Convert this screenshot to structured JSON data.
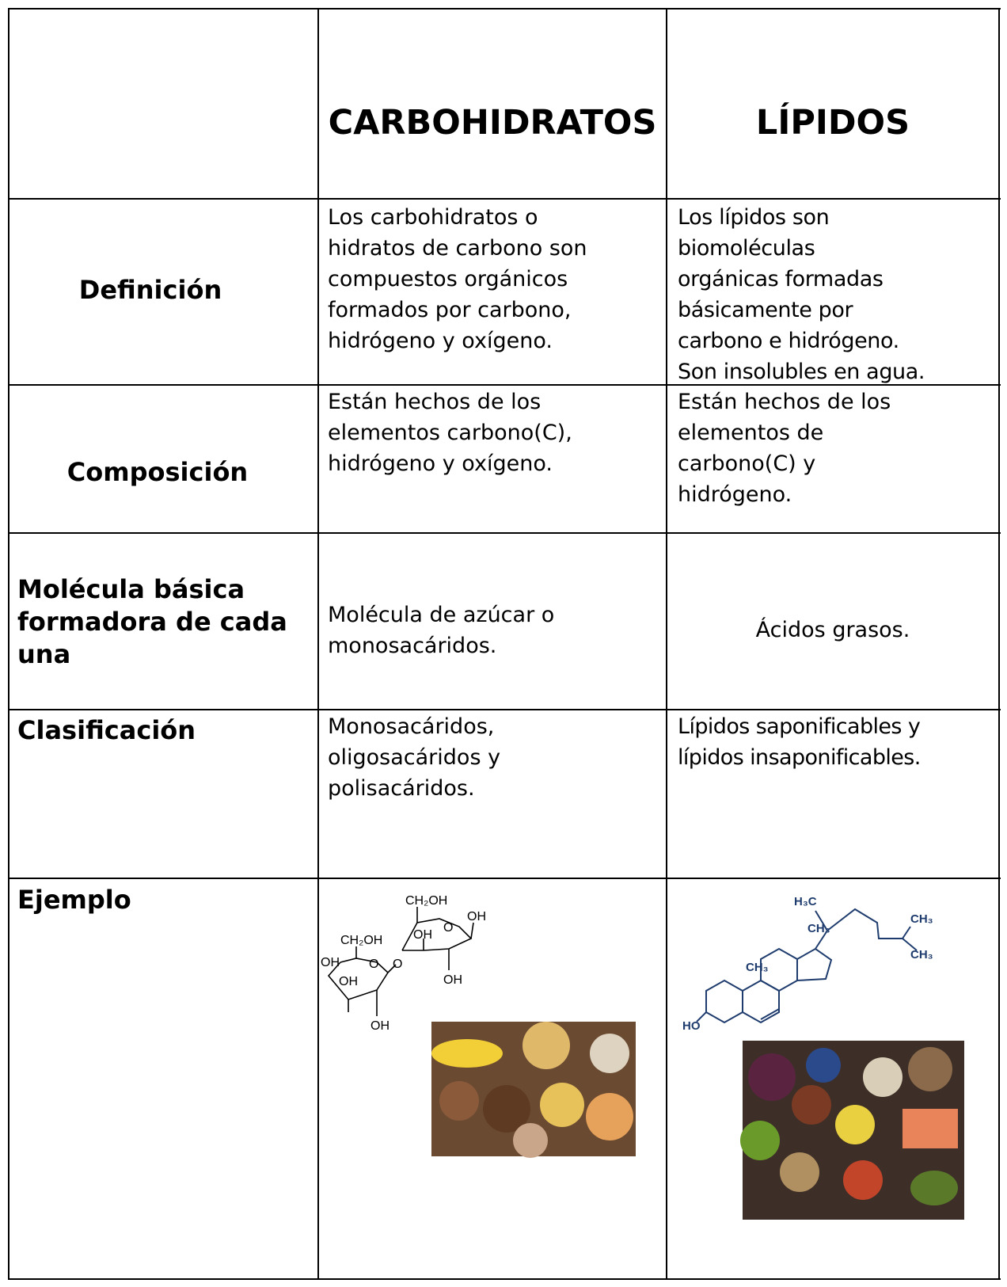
{
  "table": {
    "header": [
      "CARBOHIDRATOS",
      "LÍPIDOS"
    ],
    "rows": [
      {
        "label": [
          "Definición"
        ],
        "carbohidratos": [
          "Los carbohidratos o",
          "hidratos de carbono son",
          "compuestos orgánicos",
          "formados por carbono,",
          "hidrógeno y oxígeno."
        ],
        "lipidos": [
          "Los lípidos son",
          "biomoléculas",
          "orgánicas formadas",
          "básicamente por",
          "carbono e hidrógeno.",
          "Son insolubles en agua."
        ]
      },
      {
        "label": [
          "Composición"
        ],
        "carbohidratos": [
          "Están hechos de los",
          "elementos carbono(C),",
          "hidrógeno y oxígeno."
        ],
        "lipidos": [
          "Están hechos de los",
          "elementos de",
          "carbono(C) y",
          "hidrógeno."
        ]
      },
      {
        "label": [
          "Molécula básica",
          "formadora de cada",
          "una"
        ],
        "carbohidratos": [
          "Molécula de azúcar o",
          "monosacáridos."
        ],
        "lipidos": [
          "Ácidos grasos."
        ]
      },
      {
        "label": [
          "Clasificación"
        ],
        "carbohidratos": [
          "Monosacáridos,",
          "oligosacáridos y",
          "polisacáridos."
        ],
        "lipidos": [
          "Lípidos saponificables y",
          "lípidos insaponificables."
        ]
      },
      {
        "label": [
          "Ejemplo"
        ],
        "carbohidratos_molecule_labels": [
          "CH₂OH",
          "O",
          "OH",
          "OH",
          "CH₂OH",
          "OH",
          "O",
          "O",
          "OH",
          "OH",
          "OH"
        ],
        "lipidos_molecule_labels": [
          "H₃C",
          "CH₃",
          "CH₃",
          "CH₃",
          "CH₃",
          "HO"
        ]
      }
    ]
  }
}
